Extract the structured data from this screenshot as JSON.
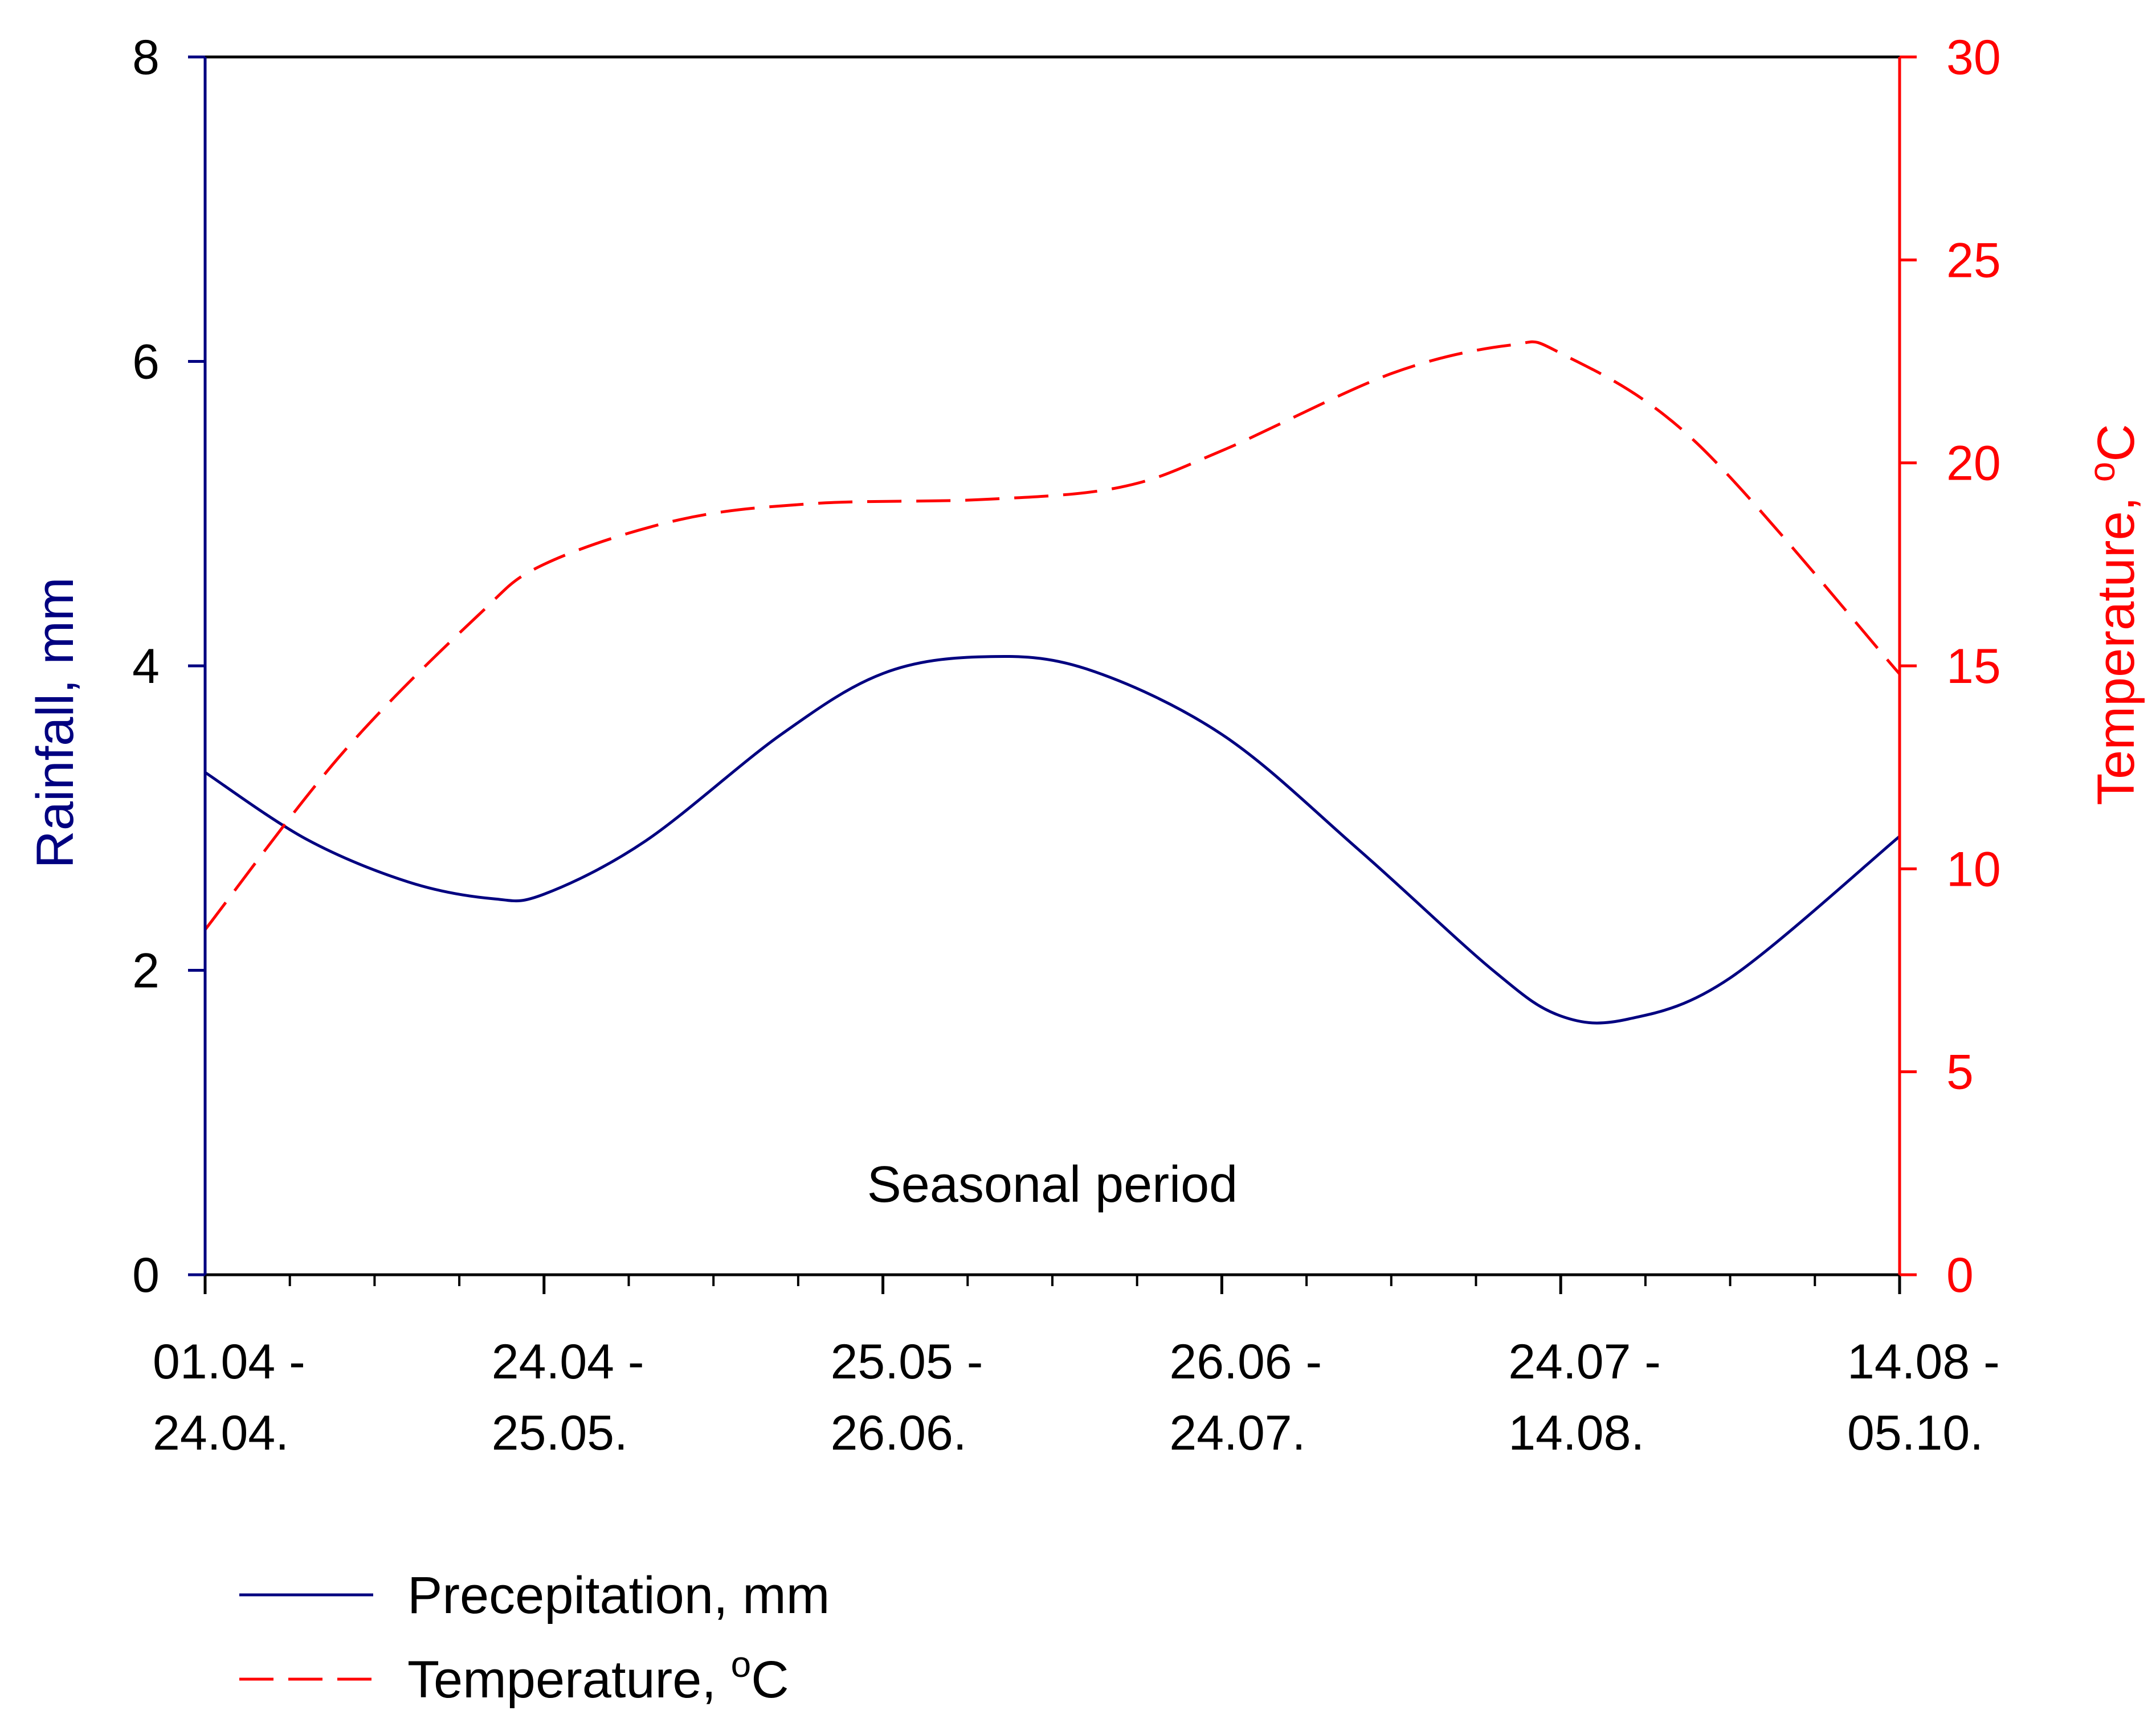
{
  "chart_data": {
    "type": "line",
    "categories": [
      [
        "01.04 -",
        "24.04."
      ],
      [
        "24.04 -",
        "25.05."
      ],
      [
        "25.05 -",
        "26.06."
      ],
      [
        "26.06 -",
        "24.07."
      ],
      [
        "24.07 -",
        "14.08."
      ],
      [
        "14.08 -",
        "05.10."
      ]
    ],
    "x_range": [
      0,
      5
    ],
    "minor_ticks_per_interval": 4,
    "annotation": "Seasonal period",
    "y_left": {
      "label": "Rainfall, mm",
      "range": [
        0,
        8
      ],
      "ticks": [
        0,
        2,
        4,
        6,
        8
      ],
      "color": "#000080"
    },
    "y_right": {
      "label_main": "Temperature, ",
      "label_sup": "o",
      "label_unit": "C",
      "range": [
        0,
        30
      ],
      "ticks": [
        0,
        5,
        10,
        15,
        20,
        25,
        30
      ],
      "color": "#ff0000"
    },
    "series": [
      {
        "name": "Precepitation, mm",
        "axis": "left",
        "style": "solid",
        "color": "#000080",
        "points": [
          [
            0,
            3.3
          ],
          [
            0.3,
            2.86
          ],
          [
            0.6,
            2.58
          ],
          [
            0.85,
            2.47
          ],
          [
            1.0,
            2.5
          ],
          [
            1.3,
            2.85
          ],
          [
            1.7,
            3.55
          ],
          [
            2.0,
            3.95
          ],
          [
            2.3,
            4.06
          ],
          [
            2.6,
            3.98
          ],
          [
            3.0,
            3.55
          ],
          [
            3.4,
            2.8
          ],
          [
            3.8,
            2.0
          ],
          [
            4.0,
            1.7
          ],
          [
            4.2,
            1.68
          ],
          [
            4.5,
            1.95
          ],
          [
            5.0,
            2.88
          ]
        ]
      },
      {
        "name": "Temperature, ",
        "legend_sup": "o",
        "legend_unit": "C",
        "axis": "right",
        "style": "dashed",
        "color": "#ff0000",
        "points": [
          [
            0,
            8.5
          ],
          [
            0.4,
            12.8
          ],
          [
            0.8,
            16.2
          ],
          [
            1.0,
            17.5
          ],
          [
            1.4,
            18.6
          ],
          [
            1.8,
            19.0
          ],
          [
            2.3,
            19.1
          ],
          [
            2.7,
            19.4
          ],
          [
            3.0,
            20.3
          ],
          [
            3.5,
            22.2
          ],
          [
            3.85,
            22.9
          ],
          [
            4.0,
            22.7
          ],
          [
            4.4,
            20.5
          ],
          [
            5.0,
            14.8
          ]
        ]
      }
    ],
    "legend_position": "bottom-left"
  }
}
